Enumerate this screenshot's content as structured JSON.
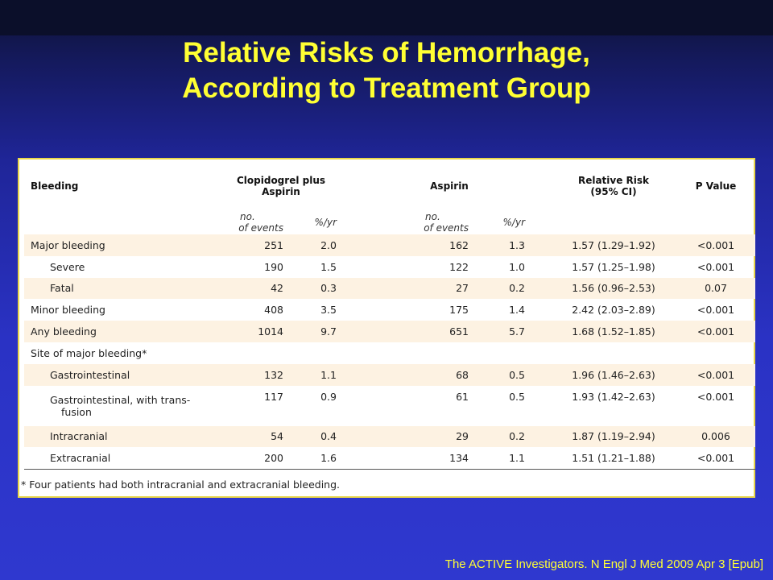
{
  "slide": {
    "title_line1": "Relative Risks of Hemorrhage,",
    "title_line2": "According to Treatment Group",
    "citation": "The ACTIVE Investigators. N Engl J Med 2009 Apr 3 [Epub]"
  },
  "table": {
    "headers": {
      "bleeding": "Bleeding",
      "clopidogrel": "Clopidogrel plus Aspirin",
      "aspirin": "Aspirin",
      "rr_line1": "Relative Risk",
      "rr_line2": "(95% CI)",
      "pvalue": "P Value"
    },
    "subheaders": {
      "no_line1": "no.",
      "no_line2": "of events",
      "rate": "%/yr"
    },
    "rows": [
      {
        "label": "Major bleeding",
        "indent": false,
        "cp_events": "251",
        "cp_rate": "2.0",
        "a_events": "162",
        "a_rate": "1.3",
        "rr": "1.57 (1.29–1.92)",
        "p": "<0.001"
      },
      {
        "label": "Severe",
        "indent": true,
        "cp_events": "190",
        "cp_rate": "1.5",
        "a_events": "122",
        "a_rate": "1.0",
        "rr": "1.57 (1.25–1.98)",
        "p": "<0.001"
      },
      {
        "label": "Fatal",
        "indent": true,
        "cp_events": "42",
        "cp_rate": "0.3",
        "a_events": "27",
        "a_rate": "0.2",
        "rr": "1.56 (0.96–2.53)",
        "p": "0.07"
      },
      {
        "label": "Minor bleeding",
        "indent": false,
        "cp_events": "408",
        "cp_rate": "3.5",
        "a_events": "175",
        "a_rate": "1.4",
        "rr": "2.42 (2.03–2.89)",
        "p": "<0.001"
      },
      {
        "label": "Any bleeding",
        "indent": false,
        "cp_events": "1014",
        "cp_rate": "9.7",
        "a_events": "651",
        "a_rate": "5.7",
        "rr": "1.68 (1.52–1.85)",
        "p": "<0.001"
      },
      {
        "label": "Site of major bleeding*",
        "indent": false,
        "cp_events": "",
        "cp_rate": "",
        "a_events": "",
        "a_rate": "",
        "rr": "",
        "p": ""
      },
      {
        "label": "Gastrointestinal",
        "indent": true,
        "cp_events": "132",
        "cp_rate": "1.1",
        "a_events": "68",
        "a_rate": "0.5",
        "rr": "1.96 (1.46–2.63)",
        "p": "<0.001"
      },
      {
        "label_line1": "Gastrointestinal, with trans-",
        "label_line2": "fusion",
        "indent": true,
        "cp_events": "117",
        "cp_rate": "0.9",
        "a_events": "61",
        "a_rate": "0.5",
        "rr": "1.93 (1.42–2.63)",
        "p": "<0.001"
      },
      {
        "label": "Intracranial",
        "indent": true,
        "cp_events": "54",
        "cp_rate": "0.4",
        "a_events": "29",
        "a_rate": "0.2",
        "rr": "1.87 (1.19–2.94)",
        "p": "0.006"
      },
      {
        "label": "Extracranial",
        "indent": true,
        "cp_events": "200",
        "cp_rate": "1.6",
        "a_events": "134",
        "a_rate": "1.1",
        "rr": "1.51 (1.21–1.88)",
        "p": "<0.001"
      }
    ],
    "footnote": "* Four patients had both intracranial and extracranial bleeding."
  },
  "colors": {
    "title": "#ffff33",
    "background_top": "#0d1232",
    "background_bottom": "#2f38cf",
    "table_frame": "#e8d64a",
    "row_shade": "#fdf2e2"
  }
}
